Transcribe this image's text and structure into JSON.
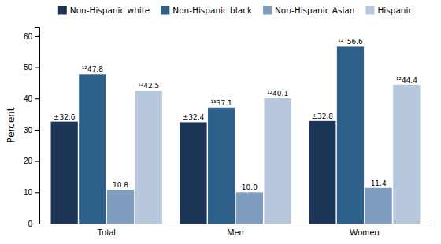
{
  "chart_data": {
    "type": "bar",
    "categories": [
      "Total",
      "Men",
      "Women"
    ],
    "series": [
      {
        "name": "Non-Hispanic white",
        "color": "#1c3557",
        "values": [
          32.6,
          32.4,
          32.8
        ],
        "value_labels": [
          "±32.6",
          "±32.4",
          "±32.8"
        ]
      },
      {
        "name": "Non-Hispanic black",
        "color": "#2e608c",
        "values": [
          47.8,
          37.1,
          56.6
        ],
        "value_labels": [
          "¹²47.8",
          "¹³37.1",
          "¹²´56.6"
        ]
      },
      {
        "name": "Non-Hispanic Asian",
        "color": "#7f9dbf",
        "values": [
          10.8,
          10.0,
          11.4
        ],
        "value_labels": [
          "10.8",
          "10.0",
          "11.4"
        ]
      },
      {
        "name": "Hispanic",
        "color": "#b8c8dc",
        "values": [
          42.5,
          40.1,
          44.4
        ],
        "value_labels": [
          "¹²42.5",
          "¹²40.1",
          "¹²44.4"
        ]
      }
    ],
    "ylabel": "Percent",
    "ylim": [
      0,
      63
    ],
    "yticks": [
      0,
      10,
      20,
      30,
      40,
      50,
      60
    ],
    "grid": false,
    "legend": "top",
    "data_labels": true
  }
}
